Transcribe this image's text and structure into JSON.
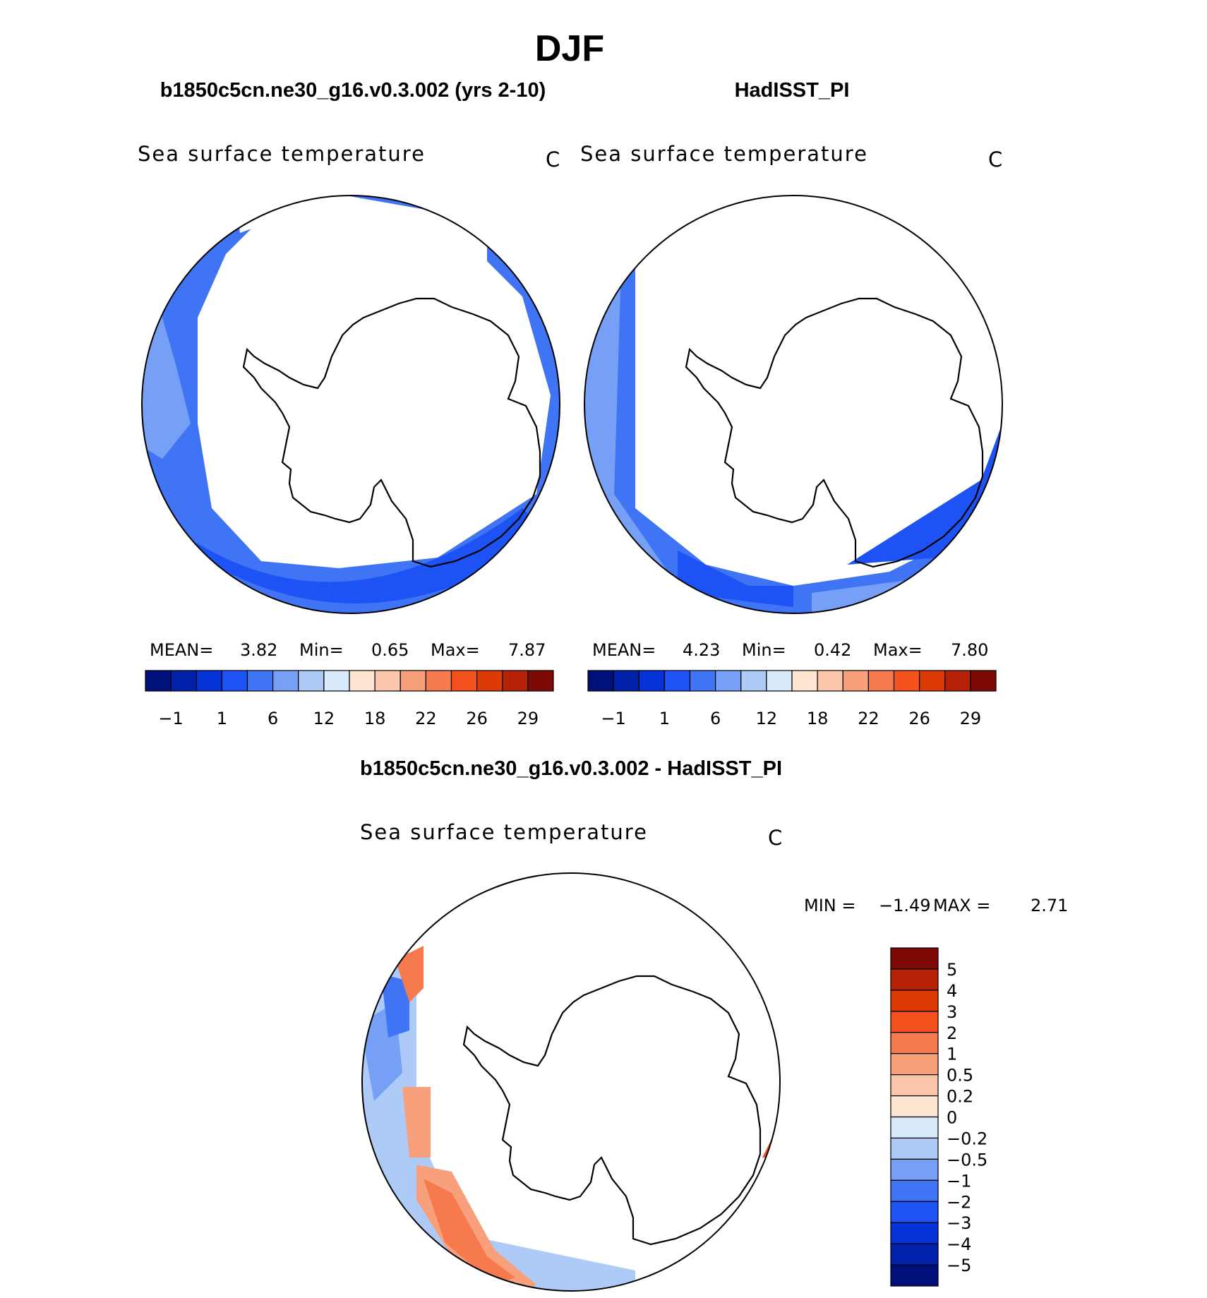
{
  "figure_title": "DJF",
  "panels": [
    {
      "case_title": "b1850c5cn.ne30_g16.v0.3.002 (yrs 2-10)",
      "left_label": "Sea surface temperature",
      "right_label": "C",
      "stats": {
        "mean_label": "MEAN=",
        "mean": "3.82",
        "min_label": "Min=",
        "min": "0.65",
        "max_label": "Max=",
        "max": "7.87"
      }
    },
    {
      "case_title": "HadISST_PI",
      "left_label": "Sea surface temperature",
      "right_label": "C",
      "stats": {
        "mean_label": "MEAN=",
        "mean": "4.23",
        "min_label": "Min=",
        "min": "0.42",
        "max_label": "Max=",
        "max": "7.80"
      }
    },
    {
      "case_title": "b1850c5cn.ne30_g16.v0.3.002 - HadISST_PI",
      "left_label": "Sea surface temperature",
      "right_label": "C",
      "stats": {
        "min_label": "MIN =",
        "min": "−1.49",
        "max_label": "MAX =",
        "max": "2.71"
      }
    }
  ],
  "chart_data": [
    {
      "type": "heatmap",
      "projection": "south-polar-stereographic",
      "variable": "Sea surface temperature",
      "units": "C",
      "season": "DJF",
      "case": "b1850c5cn.ne30_g16.v0.3.002 (yrs 2-10)",
      "mean": 3.82,
      "min": 0.65,
      "max": 7.87,
      "contour_levels": [
        "−1",
        "1",
        "6",
        "12",
        "18",
        "22",
        "26",
        "29"
      ],
      "colors": [
        "#00107a",
        "#0022aa",
        "#0433d8",
        "#1d52f5",
        "#3f74f5",
        "#76a0f5",
        "#aecbf7",
        "#d8eafb",
        "#fde5d2",
        "#fbc6ac",
        "#f8a07c",
        "#f77a4f",
        "#f3521f",
        "#dd3a06",
        "#b52205",
        "#7d0a04"
      ],
      "legend": "bottom"
    },
    {
      "type": "heatmap",
      "projection": "south-polar-stereographic",
      "variable": "Sea surface temperature",
      "units": "C",
      "season": "DJF",
      "case": "HadISST_PI",
      "mean": 4.23,
      "min": 0.42,
      "max": 7.8,
      "contour_levels": [
        "−1",
        "1",
        "6",
        "12",
        "18",
        "22",
        "26",
        "29"
      ],
      "colors": [
        "#00107a",
        "#0022aa",
        "#0433d8",
        "#1d52f5",
        "#3f74f5",
        "#76a0f5",
        "#aecbf7",
        "#d8eafb",
        "#fde5d2",
        "#fbc6ac",
        "#f8a07c",
        "#f77a4f",
        "#f3521f",
        "#dd3a06",
        "#b52205",
        "#7d0a04"
      ],
      "legend": "bottom"
    },
    {
      "type": "heatmap",
      "projection": "south-polar-stereographic",
      "variable": "Sea surface temperature",
      "units": "C",
      "season": "DJF",
      "case": "b1850c5cn.ne30_g16.v0.3.002 - HadISST_PI",
      "min": -1.49,
      "max": 2.71,
      "contour_levels": [
        "5",
        "4",
        "3",
        "2",
        "1",
        "0.5",
        "0.2",
        "0",
        "−0.2",
        "−0.5",
        "−1",
        "−2",
        "−3",
        "−4",
        "−5"
      ],
      "colors": [
        "#7d0a04",
        "#b52205",
        "#dd3a06",
        "#f3521f",
        "#f77a4f",
        "#f8a07c",
        "#fbc6ac",
        "#fde5d2",
        "#d8eafb",
        "#aecbf7",
        "#76a0f5",
        "#3f74f5",
        "#1d52f5",
        "#0433d8",
        "#0022aa",
        "#00107a"
      ],
      "legend": "right"
    }
  ]
}
